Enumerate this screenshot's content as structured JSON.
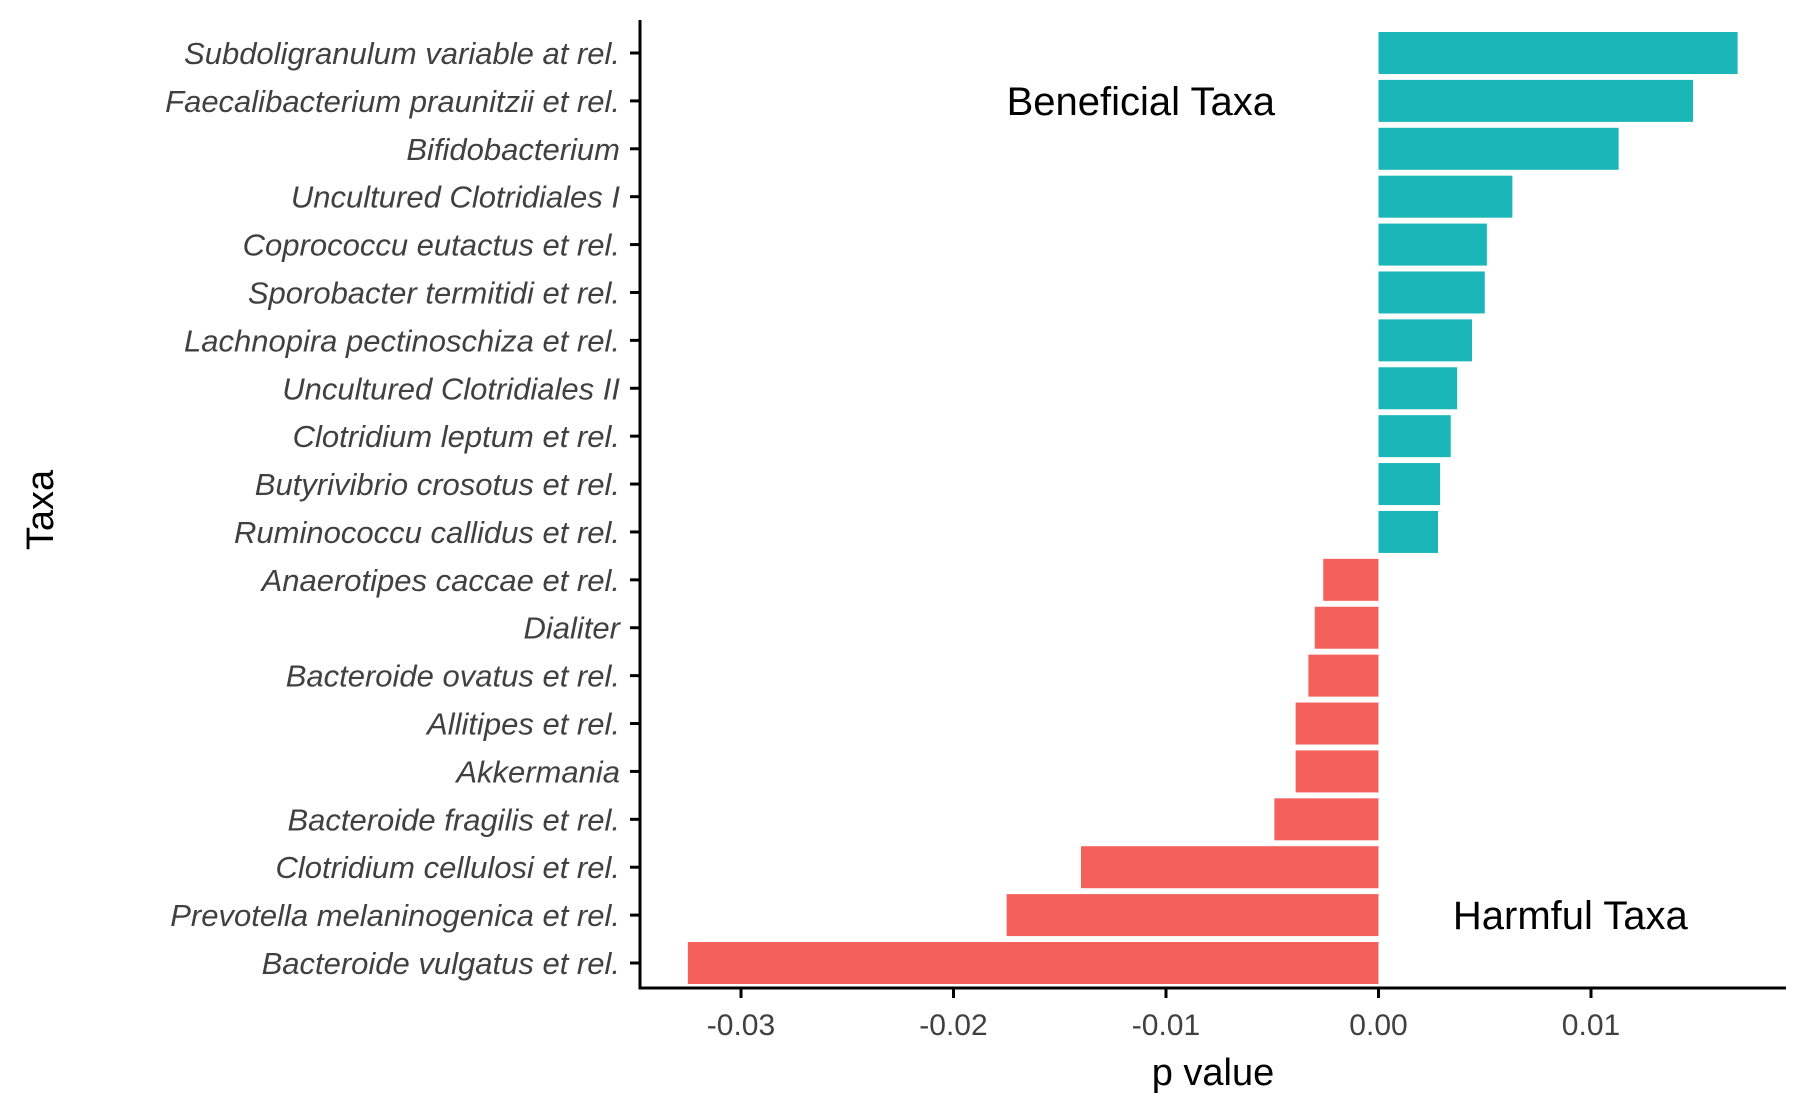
{
  "chart_data": {
    "type": "bar",
    "orientation": "horizontal",
    "xlabel": "p value",
    "ylabel": "Taxa",
    "xlim": [
      -0.035,
      0.0193
    ],
    "xticks": [
      -0.03,
      -0.02,
      -0.01,
      0.0,
      0.01
    ],
    "xtick_labels": [
      "-0.03",
      "-0.02",
      "-0.01",
      "0.00",
      "0.01"
    ],
    "categories": [
      "Subdoligranulum variable at rel.",
      "Faecalibacterium praunitzii et rel.",
      "Bifidobacterium",
      "Uncultured Clotridiales I",
      "Coprococcu eutactus et rel.",
      "Sporobacter termitidi et rel.",
      "Lachnopira pectinoschiza et rel.",
      "Uncultured Clotridiales II",
      "Clotridium leptum et rel.",
      "Butyrivibrio crosotus et rel.",
      "Ruminococcu callidus et rel.",
      "Anaerotipes caccae et rel.",
      "Dialiter",
      "Bacteroide ovatus et rel.",
      "Allitipes et rel.",
      "Akkermania",
      "Bacteroide fragilis et rel.",
      "Clotridium cellulosi et rel.",
      "Prevotella melaninogenica et rel.",
      "Bacteroide vulgatus et rel."
    ],
    "values": [
      0.0169,
      0.0148,
      0.0113,
      0.0063,
      0.0051,
      0.005,
      0.0044,
      0.0037,
      0.0034,
      0.0029,
      0.0028,
      -0.0026,
      -0.003,
      -0.0033,
      -0.0039,
      -0.0039,
      -0.0049,
      -0.014,
      -0.0175,
      -0.0325
    ],
    "colors": {
      "positive": "#1bb6b8",
      "negative": "#f4605c"
    },
    "annotations": [
      {
        "text": "Beneficial Taxa",
        "x": -0.0175,
        "y_category_index": 1
      },
      {
        "text": "Harmful Taxa",
        "x": 0.0035,
        "y_category_index": 18
      }
    ]
  }
}
